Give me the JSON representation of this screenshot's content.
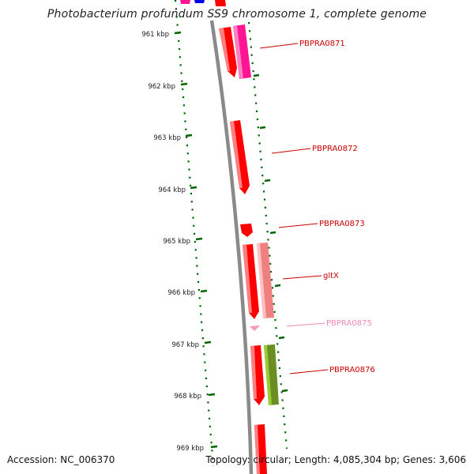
{
  "title": "Photobacterium profundum SS9 chromosome 1, complete genome",
  "accession": "Accession: NC_006370",
  "topology": "Topology: circular; Length: 4,085,304 bp; Genes: 3,606",
  "kbp_ticks": [
    "961 kbp",
    "962 kbp",
    "963 kbp",
    "964 kbp",
    "965 kbp",
    "966 kbp",
    "967 kbp",
    "968 kbp",
    "969 kbp"
  ],
  "gene_labels": [
    {
      "name": "PBPRA0871",
      "color": "#cc0000"
    },
    {
      "name": "PBPRA0872",
      "color": "#cc0000"
    },
    {
      "name": "PBPRA0873",
      "color": "#cc0000"
    },
    {
      "name": "gltX",
      "color": "#cc0000"
    },
    {
      "name": "PBPRA0875",
      "color": "#f08ab0"
    },
    {
      "name": "PBPRA0876",
      "color": "#cc0000"
    }
  ],
  "colors": {
    "backbone": "#8a8a8a",
    "gene_red": "#ff0000",
    "gene_magenta": "#ff1493",
    "gene_salmon": "#f08080",
    "gene_olive": "#6b8e23",
    "gene_blue": "#0000ee",
    "tick_green": "#006400"
  }
}
